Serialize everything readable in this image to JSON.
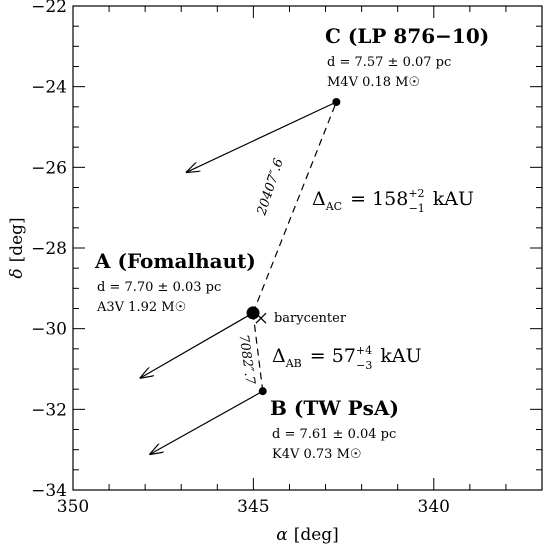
{
  "chart_data": {
    "type": "scatter",
    "xlabel": {
      "symbol": "α",
      "unit": "[deg]"
    },
    "ylabel": {
      "symbol": "δ",
      "unit": "[deg]"
    },
    "xlim": [
      350,
      337
    ],
    "ylim": [
      -34,
      -22
    ],
    "xticks": [
      350,
      345,
      340
    ],
    "yticks": [
      {
        "value": -34,
        "label": "−34"
      },
      {
        "value": -32,
        "label": "−32"
      },
      {
        "value": -30,
        "label": "−30"
      },
      {
        "value": -28,
        "label": "−28"
      },
      {
        "value": -26,
        "label": "−26"
      },
      {
        "value": -24,
        "label": "−24"
      },
      {
        "value": -22,
        "label": "−22"
      }
    ],
    "xticks_minor": [
      349,
      348,
      347,
      346,
      344,
      343,
      342,
      341,
      339,
      338
    ],
    "yticks_minor": [
      -33.5,
      -33,
      -32.5,
      -31.5,
      -31,
      -30.5,
      -29.5,
      -29,
      -28.5,
      -27.5,
      -27,
      -26.5,
      -25.5,
      -25,
      -24.5,
      -23.5,
      -23,
      -22.5
    ],
    "stars": [
      {
        "name": "C (LP 876−10)",
        "distance": "d = 7.57 ± 0.07 pc",
        "spectral": "M4V  0.18 M☉",
        "x": 342.7,
        "y": -24.38,
        "arrow_x": 346.85,
        "arrow_y": -26.12
      },
      {
        "name": "A (Fomalhaut)",
        "distance": "d = 7.70 ± 0.03 pc",
        "spectral": "A3V  1.92 M☉",
        "x": 345.01,
        "y": -29.61,
        "arrow_x": 348.13,
        "arrow_y": -31.22
      },
      {
        "name": "B (TW PsA)",
        "distance": "d = 7.61 ± 0.04 pc",
        "spectral": "K4V  0.73 M☉",
        "x": 344.74,
        "y": -31.55,
        "arrow_x": 347.86,
        "arrow_y": -33.11
      }
    ],
    "barycenter": {
      "label": "barycenter",
      "x": 344.79,
      "y": -29.74
    },
    "separations": [
      {
        "angle": "20407″.6",
        "symbol": "Δ",
        "sub": "AC",
        "eq": "= 158",
        "sup": "+2",
        "low": "−1",
        "unit": "kAU"
      },
      {
        "angle": "7082″.7",
        "symbol": "Δ",
        "sub": "AB",
        "eq": "= 57",
        "sup": "+4",
        "low": "−3",
        "unit": "kAU"
      }
    ]
  }
}
